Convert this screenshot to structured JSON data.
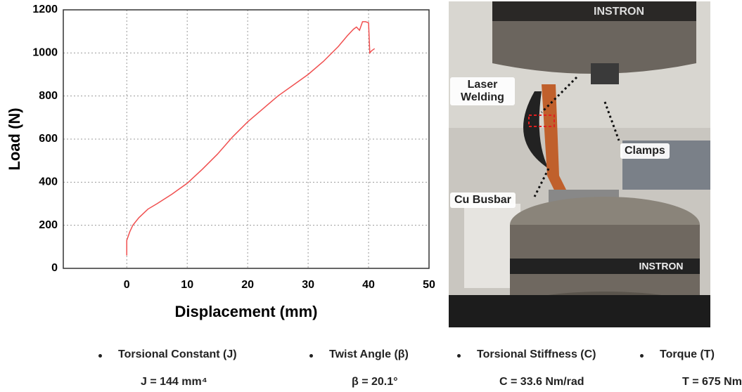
{
  "chart_data": {
    "type": "line",
    "x_label": "Displacement (mm)",
    "y_label": "Load (N)",
    "x": [
      0,
      0,
      0.5,
      1,
      2,
      3.5,
      5,
      7.5,
      10,
      12.5,
      15,
      17.5,
      20,
      22.5,
      25,
      27.5,
      30,
      32.5,
      35,
      36.5,
      37.5,
      38,
      38.5,
      39,
      39.5,
      40,
      40.2,
      40.5,
      41
    ],
    "values": [
      60,
      130,
      170,
      200,
      235,
      275,
      300,
      345,
      395,
      460,
      530,
      610,
      680,
      740,
      800,
      850,
      900,
      960,
      1030,
      1080,
      1110,
      1120,
      1105,
      1145,
      1145,
      1140,
      1000,
      1010,
      1020
    ],
    "color": "#f05050",
    "xlim": [
      -10.5,
      50
    ],
    "xticks": [
      0,
      10,
      20,
      30,
      40,
      50
    ],
    "ylim": [
      0,
      1200
    ],
    "yticks": [
      0,
      200,
      400,
      600,
      800,
      1000,
      1200
    ],
    "grid": true
  },
  "photo": {
    "brand_top": "INSTRON",
    "brand_bottom": "INSTRON",
    "labels": [
      "Laser Welding",
      "Clamps",
      "Cu Busbar"
    ]
  },
  "properties": [
    {
      "name": "Torsional Constant (J)",
      "value": "J = 144 mm⁴"
    },
    {
      "name": "Twist Angle (β)",
      "value": "β = 20.1°"
    },
    {
      "name": "Torsional Stiffness (C)",
      "value": "C = 33.6 Nm/rad"
    },
    {
      "name": "Torque (T)",
      "value": "T = 675 Nm"
    }
  ]
}
